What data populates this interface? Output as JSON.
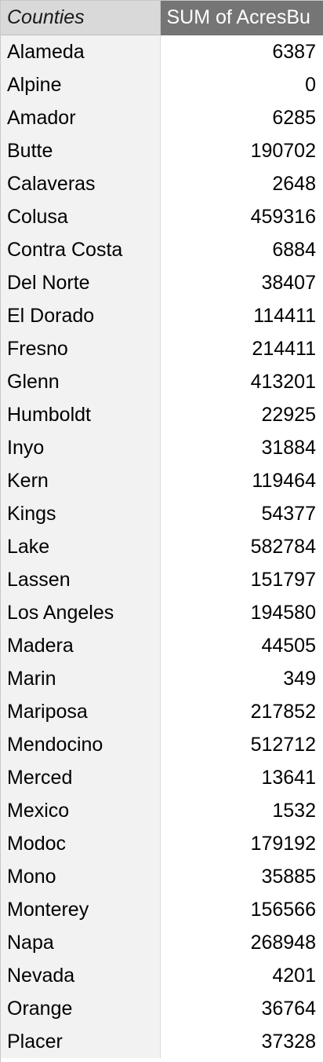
{
  "table": {
    "headers": {
      "counties": "Counties",
      "sum": "SUM of AcresBu"
    },
    "rows": [
      {
        "county": "Alameda",
        "value": "6387"
      },
      {
        "county": "Alpine",
        "value": "0"
      },
      {
        "county": "Amador",
        "value": "6285"
      },
      {
        "county": "Butte",
        "value": "190702"
      },
      {
        "county": "Calaveras",
        "value": "2648"
      },
      {
        "county": "Colusa",
        "value": "459316"
      },
      {
        "county": "Contra Costa",
        "value": "6884"
      },
      {
        "county": "Del Norte",
        "value": "38407"
      },
      {
        "county": "El Dorado",
        "value": "114411"
      },
      {
        "county": "Fresno",
        "value": "214411"
      },
      {
        "county": "Glenn",
        "value": "413201"
      },
      {
        "county": "Humboldt",
        "value": "22925"
      },
      {
        "county": "Inyo",
        "value": "31884"
      },
      {
        "county": "Kern",
        "value": "119464"
      },
      {
        "county": "Kings",
        "value": "54377"
      },
      {
        "county": "Lake",
        "value": "582784"
      },
      {
        "county": "Lassen",
        "value": "151797"
      },
      {
        "county": "Los Angeles",
        "value": "194580"
      },
      {
        "county": "Madera",
        "value": "44505"
      },
      {
        "county": "Marin",
        "value": "349"
      },
      {
        "county": "Mariposa",
        "value": "217852"
      },
      {
        "county": "Mendocino",
        "value": "512712"
      },
      {
        "county": "Merced",
        "value": "13641"
      },
      {
        "county": "Mexico",
        "value": "1532"
      },
      {
        "county": "Modoc",
        "value": "179192"
      },
      {
        "county": "Mono",
        "value": "35885"
      },
      {
        "county": "Monterey",
        "value": "156566"
      },
      {
        "county": "Napa",
        "value": "268948"
      },
      {
        "county": "Nevada",
        "value": "4201"
      },
      {
        "county": "Orange",
        "value": "36764"
      },
      {
        "county": "Placer",
        "value": "37328"
      }
    ]
  }
}
